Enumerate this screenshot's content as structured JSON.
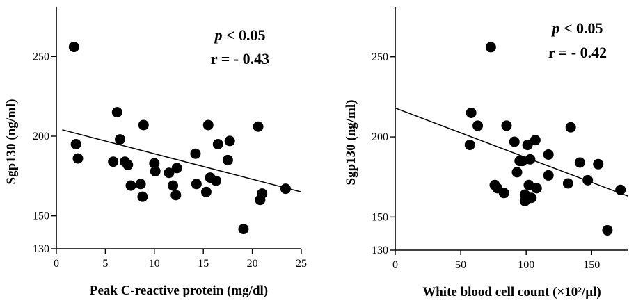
{
  "chart_data": [
    {
      "type": "scatter",
      "xlabel": "Peak C-reactive protein (mg/dl)",
      "ylabel": "Sgp130 (ng/ml)",
      "xlim": [
        0,
        25
      ],
      "ylim": [
        130,
        280
      ],
      "xticks": [
        0,
        5,
        10,
        15,
        20,
        25
      ],
      "yticks": [
        130,
        150,
        200,
        250
      ],
      "annotation": {
        "p_symbol": "p",
        "p_rest": " < 0.05",
        "r_text": "r = - 0.43"
      },
      "points": [
        {
          "x": 1.8,
          "y": 256
        },
        {
          "x": 2.0,
          "y": 195
        },
        {
          "x": 2.2,
          "y": 186
        },
        {
          "x": 5.8,
          "y": 184
        },
        {
          "x": 6.2,
          "y": 215
        },
        {
          "x": 6.5,
          "y": 198
        },
        {
          "x": 7.0,
          "y": 184
        },
        {
          "x": 7.3,
          "y": 182
        },
        {
          "x": 7.6,
          "y": 169
        },
        {
          "x": 8.6,
          "y": 170
        },
        {
          "x": 8.8,
          "y": 162
        },
        {
          "x": 8.9,
          "y": 207
        },
        {
          "x": 10.0,
          "y": 183
        },
        {
          "x": 10.1,
          "y": 178
        },
        {
          "x": 11.5,
          "y": 177
        },
        {
          "x": 11.9,
          "y": 169
        },
        {
          "x": 12.2,
          "y": 163
        },
        {
          "x": 12.3,
          "y": 180
        },
        {
          "x": 14.2,
          "y": 189
        },
        {
          "x": 14.3,
          "y": 170
        },
        {
          "x": 15.3,
          "y": 165
        },
        {
          "x": 15.5,
          "y": 207
        },
        {
          "x": 15.7,
          "y": 174
        },
        {
          "x": 16.3,
          "y": 172
        },
        {
          "x": 16.5,
          "y": 195
        },
        {
          "x": 17.5,
          "y": 185
        },
        {
          "x": 17.7,
          "y": 197
        },
        {
          "x": 19.1,
          "y": 142
        },
        {
          "x": 20.6,
          "y": 206
        },
        {
          "x": 20.8,
          "y": 160
        },
        {
          "x": 21.0,
          "y": 164
        },
        {
          "x": 23.4,
          "y": 167
        }
      ],
      "fit_line": [
        {
          "x": 0.6,
          "y": 204
        },
        {
          "x": 25,
          "y": 165
        }
      ]
    },
    {
      "type": "scatter",
      "xlabel": "White blood cell count (×10²/µl)",
      "ylabel": "Sgp130 (ng/ml)",
      "xlim": [
        0,
        178
      ],
      "ylim": [
        130,
        280
      ],
      "xticks": [
        0,
        50,
        100,
        150
      ],
      "yticks": [
        130,
        150,
        200,
        250
      ],
      "annotation": {
        "p_symbol": "p",
        "p_rest": " < 0.05",
        "r_text": "r = - 0.42"
      },
      "points": [
        {
          "x": 57,
          "y": 195
        },
        {
          "x": 58,
          "y": 215
        },
        {
          "x": 63,
          "y": 207
        },
        {
          "x": 73,
          "y": 256
        },
        {
          "x": 76,
          "y": 170
        },
        {
          "x": 78,
          "y": 168
        },
        {
          "x": 83,
          "y": 165
        },
        {
          "x": 85,
          "y": 207
        },
        {
          "x": 91,
          "y": 197
        },
        {
          "x": 93,
          "y": 178
        },
        {
          "x": 95,
          "y": 185
        },
        {
          "x": 97,
          "y": 185
        },
        {
          "x": 99,
          "y": 164
        },
        {
          "x": 99,
          "y": 160
        },
        {
          "x": 101,
          "y": 195
        },
        {
          "x": 102,
          "y": 170
        },
        {
          "x": 103,
          "y": 186
        },
        {
          "x": 104,
          "y": 162
        },
        {
          "x": 107,
          "y": 198
        },
        {
          "x": 108,
          "y": 168
        },
        {
          "x": 117,
          "y": 189
        },
        {
          "x": 117,
          "y": 176
        },
        {
          "x": 132,
          "y": 171
        },
        {
          "x": 134,
          "y": 206
        },
        {
          "x": 141,
          "y": 184
        },
        {
          "x": 147,
          "y": 173
        },
        {
          "x": 155,
          "y": 183
        },
        {
          "x": 162,
          "y": 142
        },
        {
          "x": 172,
          "y": 167
        }
      ],
      "fit_line": [
        {
          "x": 0,
          "y": 218
        },
        {
          "x": 178,
          "y": 163
        }
      ]
    }
  ]
}
